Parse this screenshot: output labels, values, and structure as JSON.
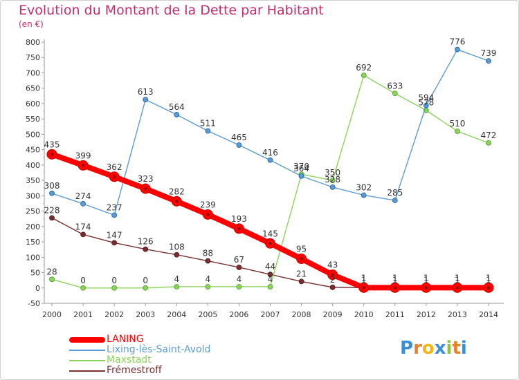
{
  "title": "Evolution du Montant de la Dette par Habitant",
  "unit_label": "(en €)",
  "brand": {
    "letters": [
      "P",
      "r",
      "o",
      "x",
      "i",
      "t",
      "i"
    ],
    "colors": [
      "#3b8ed8",
      "#e8822a",
      "#f2b619",
      "#3b8ed8",
      "#8bc53f",
      "#e8822a",
      "#3b8ed8"
    ]
  },
  "chart_data": {
    "type": "line",
    "x": [
      "2000",
      "2001",
      "2002",
      "2003",
      "2004",
      "2005",
      "2006",
      "2007",
      "2008",
      "2009",
      "2010",
      "2011",
      "2012",
      "2013",
      "2014"
    ],
    "ylim": [
      -50,
      800
    ],
    "yticks": [
      "-50",
      "0",
      "50",
      "100",
      "150",
      "200",
      "250",
      "300",
      "350",
      "400",
      "450",
      "500",
      "550",
      "600",
      "650",
      "700",
      "750",
      "800"
    ],
    "grid": false,
    "legend_position": "bottom-left",
    "series": [
      {
        "name": "LANING",
        "color": "#ff0000",
        "marker_stroke": "#cc0000",
        "thick": true,
        "values": [
          435,
          399,
          362,
          323,
          282,
          239,
          193,
          145,
          95,
          43,
          1,
          1,
          1,
          1,
          1
        ],
        "labels": [
          "435",
          "399",
          "362",
          "323",
          "282",
          "239",
          "193",
          "145",
          "95",
          "43",
          "1",
          "1",
          "1",
          "1",
          "1"
        ]
      },
      {
        "name": "Lixing-lès-Saint-Avold",
        "color": "#5b9bd5",
        "marker_stroke": "#1f5f99",
        "thick": false,
        "values": [
          308,
          274,
          237,
          613,
          564,
          511,
          465,
          416,
          364,
          328,
          302,
          285,
          594,
          776,
          739
        ],
        "labels": [
          "308",
          "274",
          "237",
          "613",
          "564",
          "511",
          "465",
          "416",
          "364",
          "328",
          "302",
          "285",
          "594",
          "776",
          "739"
        ]
      },
      {
        "name": "Maxstadt",
        "color": "#8cd35a",
        "marker_stroke": "#4c9a2a",
        "thick": false,
        "values": [
          28,
          0,
          0,
          0,
          4,
          4,
          4,
          4,
          370,
          350,
          692,
          633,
          578,
          510,
          472
        ],
        "labels": [
          "28",
          "0",
          "0",
          "0",
          "4",
          "4",
          "4",
          "4",
          "370",
          "350",
          "692",
          "633",
          "578",
          "510",
          "472"
        ]
      },
      {
        "name": "Frémestroff",
        "color": "#7a2e2e",
        "marker_stroke": "#4a1414",
        "thick": false,
        "values": [
          228,
          174,
          147,
          126,
          108,
          88,
          67,
          44,
          21,
          2,
          1,
          1,
          1,
          1,
          1
        ],
        "labels": [
          "228",
          "174",
          "147",
          "126",
          "108",
          "88",
          "67",
          "44",
          "21",
          "2",
          "1",
          "1",
          "1",
          "1",
          "1"
        ]
      }
    ]
  }
}
